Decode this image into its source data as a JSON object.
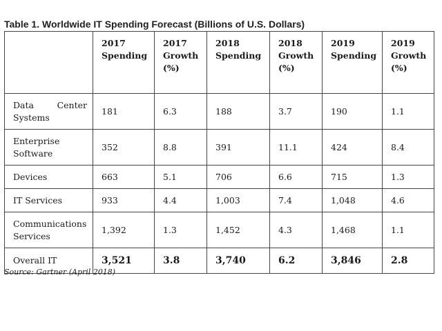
{
  "caption": "Table 1. Worldwide IT Spending Forecast (Billions of U.S. Dollars)",
  "headers": [
    "",
    "2017 Spending",
    "2017 Growth (%)",
    "2018 Spending",
    "2018 Growth (%)",
    "2019 Spending",
    "2019 Growth (%)"
  ],
  "rows": [
    {
      "segment": "Data Center Systems",
      "segment_line1": "Data Center",
      "segment_line2": "Systems",
      "values": [
        "181",
        "6.3",
        "188",
        "3.7",
        "190",
        "1.1"
      ]
    },
    {
      "segment": "Enterprise Software",
      "segment_line1": "Enterprise",
      "segment_line2": "Software",
      "values": [
        "352",
        "8.8",
        "391",
        "11.1",
        "424",
        "8.4"
      ]
    },
    {
      "segment": "Devices",
      "values": [
        "663",
        "5.1",
        "706",
        "6.6",
        "715",
        "1.3"
      ]
    },
    {
      "segment": "IT Services",
      "values": [
        "933",
        "4.4",
        "1,003",
        "7.4",
        "1,048",
        "4.6"
      ]
    },
    {
      "segment": "Communications Services",
      "segment_line1": "Communications",
      "segment_line2": "Services",
      "values": [
        "1,392",
        "1.3",
        "1,452",
        "4.3",
        "1,468",
        "1.1"
      ]
    },
    {
      "segment": "Overall IT",
      "values": [
        "3,521",
        "3.8",
        "3,740",
        "6.2",
        "3,846",
        "2.8"
      ]
    }
  ],
  "source": "Source: Gartner (April 2018)"
}
